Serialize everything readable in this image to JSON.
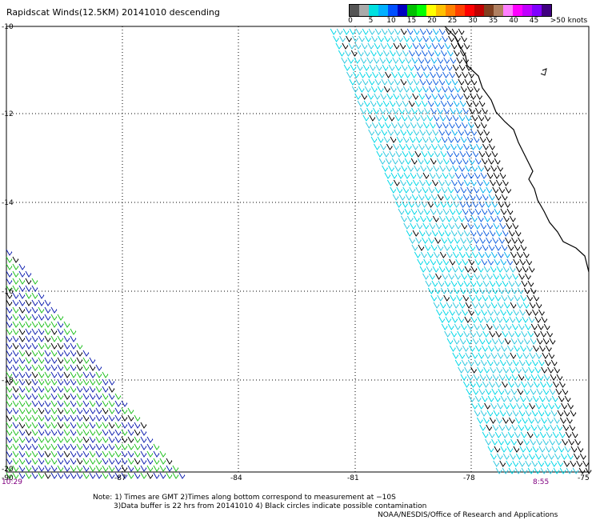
{
  "title": "Rapidscat Winds(12.5KM) 20141010 descending",
  "legend": {
    "colors": [
      "#555555",
      "#aaaaaa",
      "#00e0e0",
      "#00b0ff",
      "#0050ff",
      "#0000c0",
      "#00c000",
      "#00ff00",
      "#ffff00",
      "#ffc000",
      "#ff8000",
      "#ff4000",
      "#ff0000",
      "#c00000",
      "#804020",
      "#b08060",
      "#ff80ff",
      "#ff00ff",
      "#c000ff",
      "#8000ff",
      "#400080"
    ],
    "labels": [
      "0",
      "5",
      "10",
      "15",
      "20",
      "25",
      "30",
      "35",
      "40",
      "45",
      ">50 knots"
    ]
  },
  "axes": {
    "lat_labels": [
      "-10",
      "-12",
      "-14",
      "-16",
      "-18",
      "-20"
    ],
    "lon_labels": [
      "-90",
      "-87",
      "-84",
      "-81",
      "-78",
      "-75"
    ]
  },
  "times": {
    "left": "10:29",
    "right": "8:55"
  },
  "notes": {
    "line1": "Note: 1) Times are GMT 2)Times along bottom correspond to measurement at −10S",
    "line2": "3)Data buffer is 22 hrs from 20141010 4) Black circles indicate possible contamination"
  },
  "credit": "NOAA/NESDIS/Office of Research and Applications"
}
